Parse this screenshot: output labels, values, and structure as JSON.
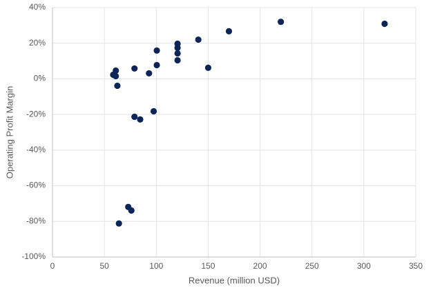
{
  "chart_data": {
    "type": "scatter",
    "x_label": "Revenue (million USD)",
    "y_label": "Operating Profit Margin",
    "color": "#0b2559",
    "grid": true,
    "x": [
      58.5,
      61,
      61,
      62.5,
      79,
      93,
      100.5,
      100.5,
      120.5,
      120.5,
      120.5,
      120.5,
      140.5,
      150,
      170,
      220,
      320,
      97.5,
      79,
      84.5,
      73,
      76,
      64
    ],
    "values": [
      2.3,
      4.6,
      1.5,
      -3.9,
      5.8,
      3.1,
      15.9,
      7.7,
      19.7,
      17.4,
      14.3,
      10.4,
      22,
      6.2,
      26.7,
      32,
      30.9,
      -18.2,
      -21.3,
      -22.8,
      -71.9,
      -73.9,
      -81.2
    ],
    "xlim": [
      0,
      350
    ],
    "xticks": [
      0,
      50,
      100,
      150,
      200,
      250,
      300,
      350
    ],
    "ylim": [
      -100,
      40
    ],
    "yticks": [
      {
        "value": -100,
        "label": "-100%"
      },
      {
        "value": -80,
        "label": "-80%"
      },
      {
        "value": -60,
        "label": "-60%"
      },
      {
        "value": -40,
        "label": "-40%"
      },
      {
        "value": -20,
        "label": "-20%"
      },
      {
        "value": 0,
        "label": "0%"
      },
      {
        "value": 20,
        "label": "20%"
      },
      {
        "value": 40,
        "label": "40%"
      }
    ]
  }
}
